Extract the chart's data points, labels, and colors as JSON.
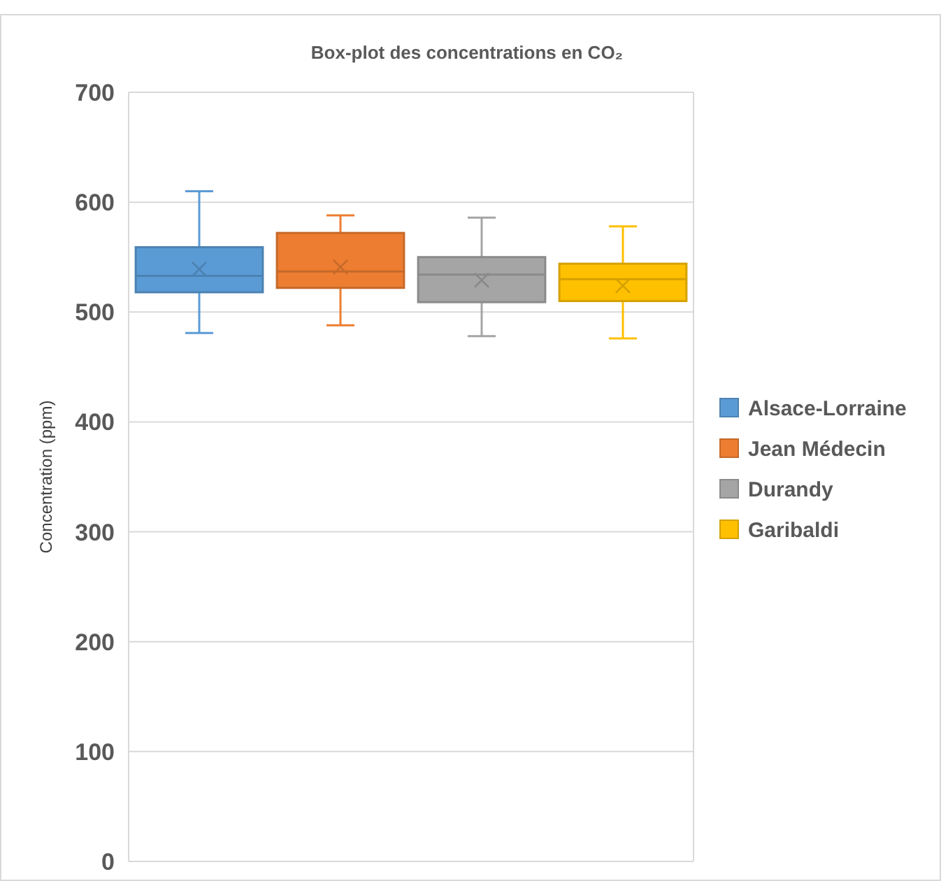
{
  "chart_data": {
    "type": "box",
    "title": "Box-plot des concentrations en CO₂",
    "ylabel": "Concentration (ppm)",
    "categories": [
      null
    ],
    "ylim": [
      0,
      700
    ],
    "yticks": [
      0,
      100,
      200,
      300,
      400,
      500,
      600,
      700
    ],
    "grid": "y",
    "legend": "right",
    "series": [
      {
        "name": "Alsace-Lorraine",
        "color": "#5b9bd5",
        "boxes": [
          {
            "low": 481,
            "q1": 518,
            "median": 533,
            "q3": 559,
            "high": 610,
            "mean": 539
          }
        ]
      },
      {
        "name": "Jean Médecin",
        "color": "#ed7d31",
        "boxes": [
          {
            "low": 488,
            "q1": 522,
            "median": 537,
            "q3": 572,
            "high": 588,
            "mean": 541
          }
        ]
      },
      {
        "name": "Durandy",
        "color": "#a5a5a5",
        "boxes": [
          {
            "low": 478,
            "q1": 509,
            "median": 534,
            "q3": 550,
            "high": 586,
            "mean": 529
          }
        ]
      },
      {
        "name": "Garibaldi",
        "color": "#ffc000",
        "boxes": [
          {
            "low": 476,
            "q1": 510,
            "median": 530,
            "q3": 544,
            "high": 578,
            "mean": 524
          }
        ]
      }
    ]
  }
}
